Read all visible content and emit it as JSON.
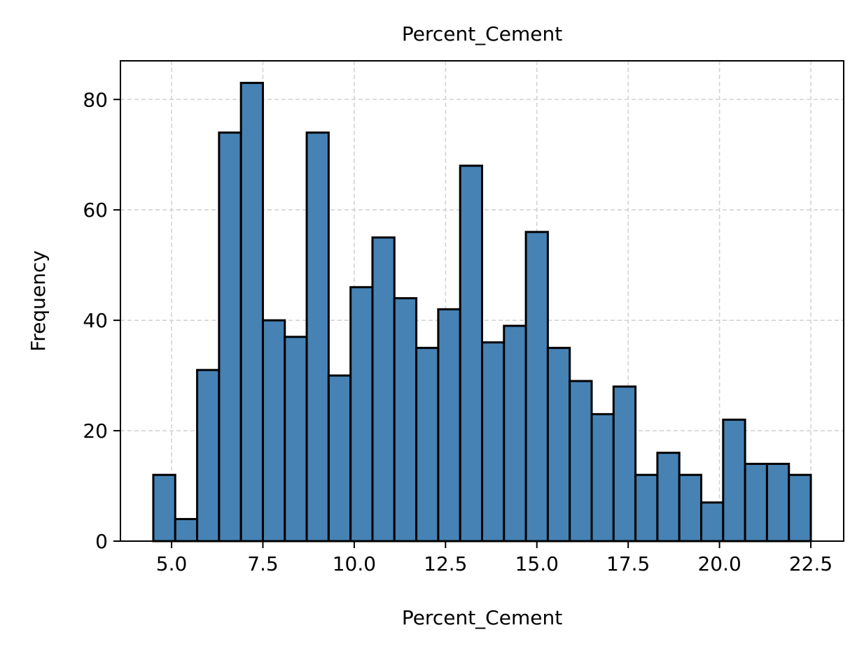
{
  "chart_data": {
    "type": "bar",
    "title": "Percent_Cement",
    "xlabel": "Percent_Cement",
    "ylabel": "Frequency",
    "xlim": [
      3.6,
      23.4
    ],
    "ylim": [
      0,
      87
    ],
    "grid": true,
    "bar_color": "#4682b4",
    "edge_color": "#000000",
    "grid_color": "#d3d3d3",
    "bin_edges": [
      4.5,
      5.1,
      5.7,
      6.3,
      6.9,
      7.5,
      8.1,
      8.7,
      9.3,
      9.9,
      10.5,
      11.1,
      11.7,
      12.3,
      12.9,
      13.5,
      14.1,
      14.7,
      15.3,
      15.9,
      16.5,
      17.1,
      17.7,
      18.3,
      18.9,
      19.5,
      20.1,
      20.7,
      21.3,
      21.9,
      22.5
    ],
    "values": [
      12,
      4,
      31,
      74,
      83,
      40,
      37,
      74,
      30,
      46,
      55,
      44,
      35,
      42,
      68,
      36,
      39,
      56,
      35,
      29,
      23,
      28,
      12,
      16,
      12,
      7,
      22,
      14,
      14,
      12
    ],
    "x_ticks": [
      5.0,
      7.5,
      10.0,
      12.5,
      15.0,
      17.5,
      20.0,
      22.5
    ],
    "x_tick_labels": [
      "5.0",
      "7.5",
      "10.0",
      "12.5",
      "15.0",
      "17.5",
      "20.0",
      "22.5"
    ],
    "y_ticks": [
      0,
      20,
      40,
      60,
      80
    ],
    "y_tick_labels": [
      "0",
      "20",
      "40",
      "60",
      "80"
    ]
  }
}
